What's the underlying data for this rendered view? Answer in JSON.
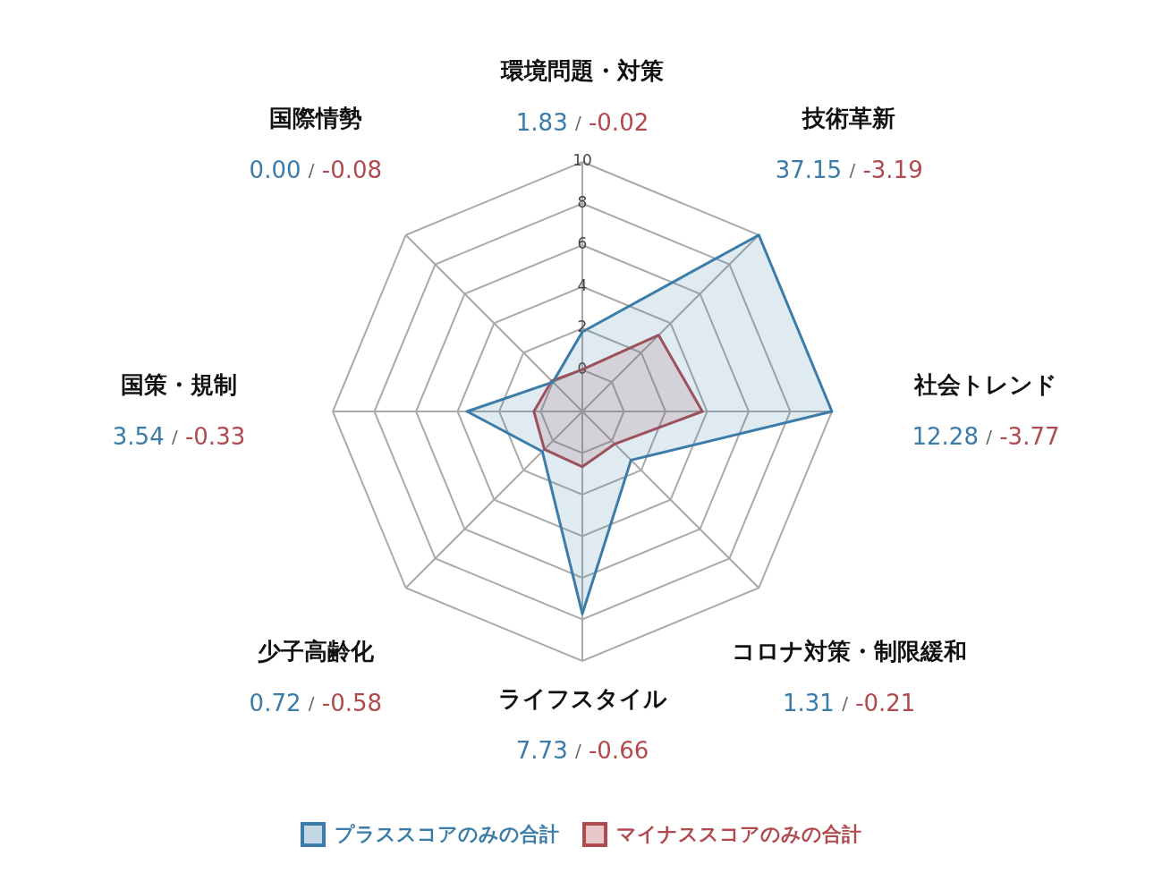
{
  "chart_data": {
    "type": "radar",
    "categories": [
      "環境問題・対策",
      "技術革新",
      "社会トレンド",
      "コロナ対策・制限緩和",
      "ライフスタイル",
      "少子高齢化",
      "国策・規制",
      "国際情勢"
    ],
    "series": [
      {
        "name": "プラススコアのみの合計",
        "color": "#3b7ca8",
        "values": [
          1.83,
          10,
          10,
          1.31,
          7.73,
          0.72,
          3.54,
          0.0
        ]
      },
      {
        "name": "マイナススコアのみの合計",
        "color": "#b04a4f",
        "values": [
          0.02,
          3.19,
          3.77,
          0.21,
          0.66,
          0.58,
          0.33,
          0.08
        ]
      }
    ],
    "annotations": [
      {
        "text": "1.83 / -0.02",
        "x": "環境問題・対策"
      },
      {
        "text": "37.15 / -3.19",
        "x": "技術革新"
      },
      {
        "text": "12.28 / -3.77",
        "x": "社会トレンド"
      },
      {
        "text": "1.31 / -0.21",
        "x": "コロナ対策・制限緩和"
      },
      {
        "text": "7.73 / -0.66",
        "x": "ライフスタイル"
      },
      {
        "text": "0.72 / -0.58",
        "x": "少子高齢化"
      },
      {
        "text": "3.54 / -0.33",
        "x": "国策・規制"
      },
      {
        "text": "0.00 / -0.08",
        "x": "国際情勢"
      }
    ],
    "ylim": [
      -2,
      10
    ],
    "yticks": [
      0,
      2,
      4,
      6,
      8,
      10
    ],
    "grid": true,
    "legend": "bottom"
  }
}
